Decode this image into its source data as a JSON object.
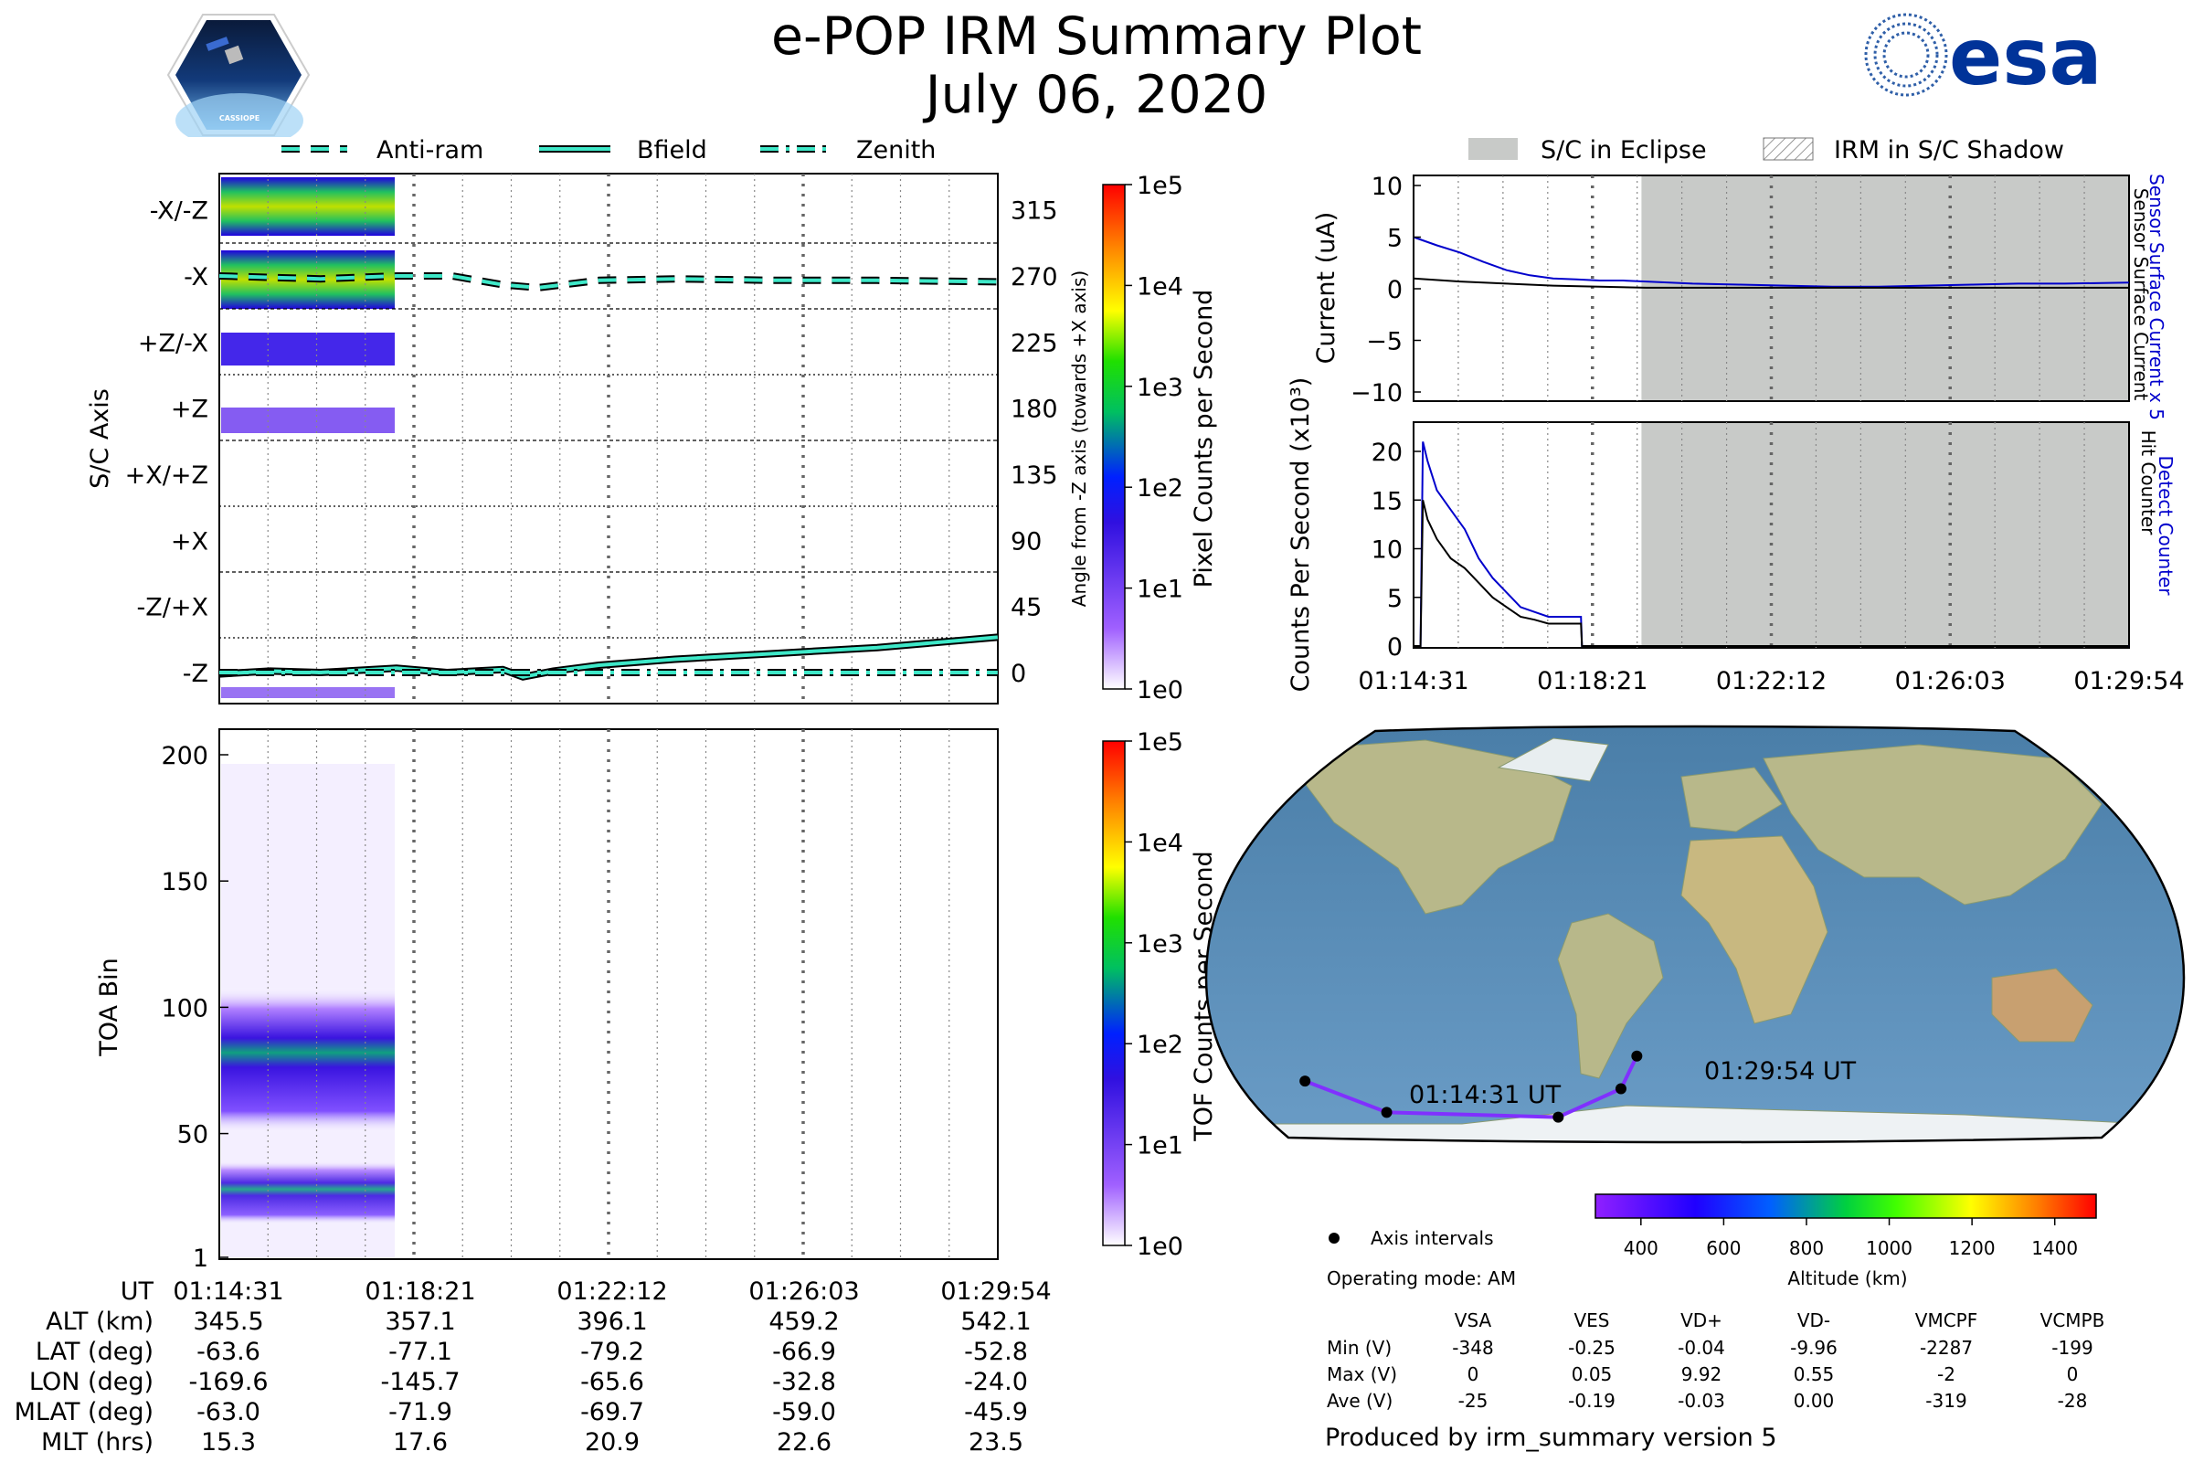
{
  "title": {
    "line1": "e-POP IRM Summary Plot",
    "line2": "July 06, 2020"
  },
  "logos": {
    "left_text": "CASSIOPE",
    "right_text": "esa"
  },
  "colors": {
    "series_cyan": "#3ee8c8",
    "eclipse_gray": "#c8cac8",
    "blue_line": "#0000cc"
  },
  "top_legend": [
    "Anti-ram",
    "Bfield",
    "Zenith"
  ],
  "right_legend": [
    "S/C in Eclipse",
    "IRM in S/C Shadow"
  ],
  "chart_data": [
    {
      "type": "heatmap",
      "name": "sc-axis-panel",
      "ylabel": "S/C Axis",
      "ylabel_right": "Angle from -Z axis (towards +X axis)",
      "ytick_labels": [
        "-X/-Z",
        "-X",
        "+Z/-X",
        "+Z",
        "+X/+Z",
        "+X",
        "-Z/+X",
        "-Z"
      ],
      "right_tick_labels": [
        "315",
        "270",
        "225",
        "180",
        "135",
        "90",
        "45",
        "0"
      ],
      "ylim": [
        -5,
        340
      ],
      "xlim_minutes": [
        0,
        15.383
      ],
      "colorbar_label": "Pixel Counts per Second",
      "colorbar_ticks": [
        "1e5",
        "1e4",
        "1e3",
        "1e2",
        "1e1",
        "1e0"
      ],
      "series": [
        {
          "name": "Anti-ram",
          "x": [
            0,
            1,
            2,
            3.5,
            4.6,
            5.6,
            6.3,
            7.5,
            9,
            11,
            13,
            15.38
          ],
          "values": [
            270,
            269,
            268,
            270,
            270,
            264,
            262,
            267,
            268,
            267,
            267,
            266
          ]
        },
        {
          "name": "Bfield",
          "x": [
            0,
            1,
            2,
            3.5,
            4.5,
            5.6,
            6.0,
            6.6,
            7.5,
            9,
            11,
            13,
            15.38
          ],
          "values": [
            -1,
            1,
            0,
            3,
            0,
            2,
            -3,
            1,
            5,
            9,
            13,
            17,
            24
          ]
        },
        {
          "name": "Zenith",
          "x": [
            0,
            15.38
          ],
          "values": [
            0,
            0
          ]
        }
      ]
    },
    {
      "type": "heatmap",
      "name": "toa-panel",
      "ylabel": "TOA Bin",
      "ytick_labels": [
        "200",
        "150",
        "100",
        "50",
        "1"
      ],
      "ylim": [
        1,
        210
      ],
      "colorbar_label": "TOF Counts per Second",
      "colorbar_ticks": [
        "1e5",
        "1e4",
        "1e3",
        "1e2",
        "1e1",
        "1e0"
      ]
    },
    {
      "type": "line",
      "name": "current-panel",
      "ylabel": "Current (uA)",
      "ylim": [
        -11,
        11
      ],
      "ytick_labels": [
        "10",
        "5",
        "0",
        "−5",
        "−10"
      ],
      "right_labels": {
        "blue": "Sensor Surface Current x 5",
        "black": "Sensor Surface Current"
      },
      "eclipse_start_minutes": 4.9,
      "series": [
        {
          "name": "Sensor Surface Current x 5",
          "x": [
            0,
            0.5,
            1,
            1.5,
            2,
            2.5,
            3,
            3.5,
            4,
            4.5,
            5,
            6,
            7,
            8,
            9,
            10,
            11,
            12,
            13,
            14,
            15.38
          ],
          "values": [
            5,
            4.2,
            3.5,
            2.6,
            1.8,
            1.3,
            1.0,
            0.9,
            0.8,
            0.8,
            0.7,
            0.5,
            0.4,
            0.3,
            0.2,
            0.2,
            0.3,
            0.4,
            0.5,
            0.5,
            0.6
          ]
        },
        {
          "name": "Sensor Surface Current",
          "x": [
            0,
            1,
            2,
            3,
            4,
            5,
            6,
            8,
            10,
            12,
            14,
            15.38
          ],
          "values": [
            1.0,
            0.7,
            0.5,
            0.3,
            0.2,
            0.1,
            0.1,
            0.1,
            0.1,
            0.1,
            0.1,
            0.1
          ]
        }
      ]
    },
    {
      "type": "line",
      "name": "counts-panel",
      "ylabel": "Counts Per Second (x10³)",
      "ylim": [
        0,
        22
      ],
      "ytick_labels": [
        "20",
        "15",
        "10",
        "5",
        "0"
      ],
      "right_labels": {
        "blue": "Detect Counter",
        "black": "Hit Counter"
      },
      "series": [
        {
          "name": "Detect Counter",
          "x": [
            0,
            0.15,
            0.2,
            0.3,
            0.5,
            0.8,
            1.1,
            1.4,
            1.7,
            2.0,
            2.3,
            2.6,
            2.9,
            3.1,
            3.6,
            3.62,
            15.38
          ],
          "values": [
            0,
            0,
            21,
            19,
            16,
            14,
            12,
            9,
            7,
            5.5,
            4,
            3.5,
            3,
            3,
            3,
            0,
            0
          ]
        },
        {
          "name": "Hit Counter",
          "x": [
            0,
            0.15,
            0.2,
            0.3,
            0.5,
            0.8,
            1.1,
            1.4,
            1.7,
            2.0,
            2.3,
            2.6,
            2.9,
            3.1,
            3.6,
            3.62,
            15.38
          ],
          "values": [
            0,
            0,
            15,
            13,
            11,
            9,
            8,
            6.5,
            5,
            4,
            3,
            2.7,
            2.3,
            2.3,
            2.3,
            0,
            0
          ]
        }
      ]
    },
    {
      "type": "scatter",
      "name": "orbit-map",
      "start_label": "01:14:31 UT",
      "end_label": "01:29:54 UT",
      "track_lonlat": [
        [
          -169.6,
          -63.6
        ],
        [
          -145.7,
          -77.1
        ],
        [
          -65.6,
          -79.2
        ],
        [
          -32.8,
          -66.9
        ],
        [
          -24.0,
          -52.8
        ]
      ],
      "colorbar_label": "Altitude (km)",
      "colorbar_ticks": [
        "400",
        "600",
        "800",
        "1000",
        "1200",
        "1400"
      ],
      "colorbar_range": [
        290,
        1500
      ]
    }
  ],
  "x_time_ticks": [
    "01:14:31",
    "01:18:21",
    "01:22:12",
    "01:26:03",
    "01:29:54"
  ],
  "bottom_table": {
    "rows": [
      {
        "label": "UT",
        "values": [
          "01:14:31",
          "01:18:21",
          "01:22:12",
          "01:26:03",
          "01:29:54"
        ]
      },
      {
        "label": "ALT (km)",
        "values": [
          "345.5",
          "357.1",
          "396.1",
          "459.2",
          "542.1"
        ]
      },
      {
        "label": "LAT (deg)",
        "values": [
          "-63.6",
          "-77.1",
          "-79.2",
          "-66.9",
          "-52.8"
        ]
      },
      {
        "label": "LON (deg)",
        "values": [
          "-169.6",
          "-145.7",
          "-65.6",
          "-32.8",
          "-24.0"
        ]
      },
      {
        "label": "MLAT (deg)",
        "values": [
          "-63.0",
          "-71.9",
          "-69.7",
          "-59.0",
          "-45.9"
        ]
      },
      {
        "label": "MLT (hrs)",
        "values": [
          "15.3",
          "17.6",
          "20.9",
          "22.6",
          "23.5"
        ]
      }
    ]
  },
  "axis_intervals_label": "Axis intervals",
  "operating_mode": "Operating mode: AM",
  "stats": {
    "headers": [
      "VSA",
      "VES",
      "VD+",
      "VD-",
      "VMCPF",
      "VCMPB"
    ],
    "rows": [
      {
        "label": "Min (V)",
        "values": [
          "-348",
          "-0.25",
          "-0.04",
          "-9.96",
          "-2287",
          "-199"
        ]
      },
      {
        "label": "Max (V)",
        "values": [
          "0",
          "0.05",
          "9.92",
          "0.55",
          "-2",
          "0"
        ]
      },
      {
        "label": "Ave (V)",
        "values": [
          "-25",
          "-0.19",
          "-0.03",
          "0.00",
          "-319",
          "-28"
        ]
      }
    ]
  },
  "produced_by": "Produced by irm_summary version 5"
}
